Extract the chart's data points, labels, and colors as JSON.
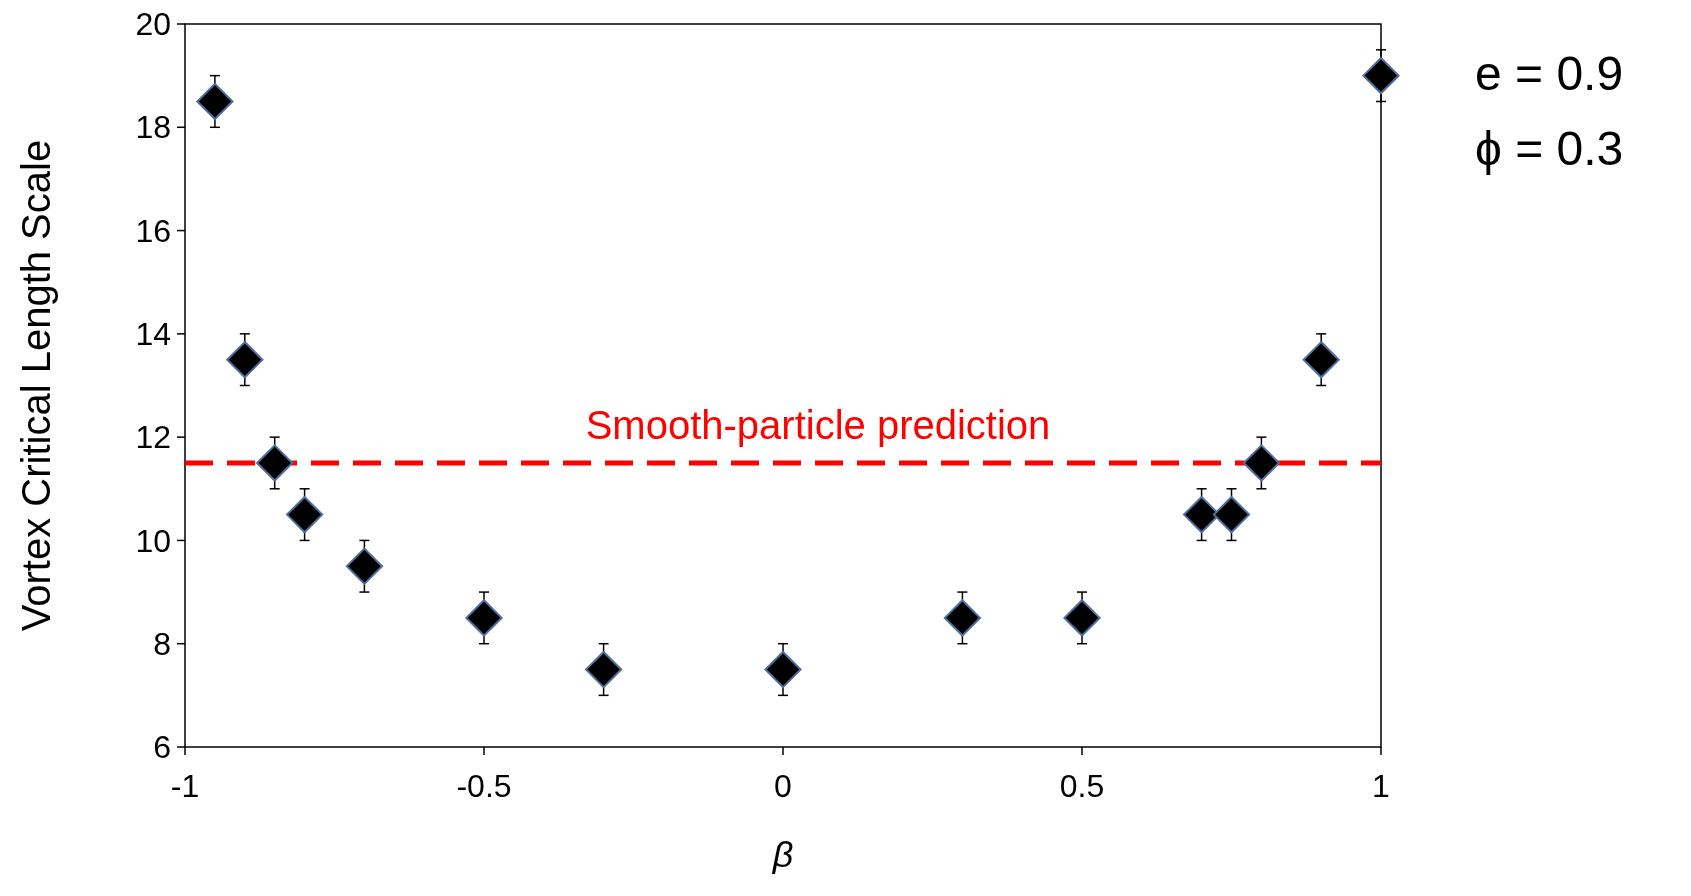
{
  "chart_data": {
    "type": "scatter",
    "xlabel": "β",
    "ylabel": "Vortex Critical Length Scale",
    "x": [
      -0.95,
      -0.9,
      -0.85,
      -0.8,
      -0.7,
      -0.5,
      -0.3,
      0,
      0.3,
      0.5,
      0.7,
      0.75,
      0.8,
      0.9,
      1
    ],
    "series": [
      {
        "color": "#000000",
        "values": [
          18.5,
          13.5,
          11.5,
          10.5,
          9.5,
          8.5,
          7.5,
          7.5,
          8.5,
          8.5,
          10.5,
          10.5,
          11.5,
          13.5,
          19
        ],
        "errors": [
          0.5,
          0.5,
          0.5,
          0.5,
          0.5,
          0.5,
          0.5,
          0.5,
          0.5,
          0.5,
          0.5,
          0.5,
          0.5,
          0.5,
          0.5
        ]
      }
    ],
    "xlim": [
      -1,
      1
    ],
    "xticks": [
      -1,
      -0.5,
      0,
      0.5,
      1
    ],
    "ylim": [
      6,
      20
    ],
    "yticks": [
      6,
      8,
      10,
      12,
      14,
      16,
      18,
      20
    ],
    "ref_lines": [
      {
        "axis": "y",
        "value": 11.5,
        "label": "Smooth-particle prediction",
        "color": "#ff0000",
        "line_style": "dashed"
      }
    ],
    "annotations": [
      "e = 0.9",
      "ϕ = 0.3"
    ],
    "marker": "diamond",
    "grid": false
  }
}
